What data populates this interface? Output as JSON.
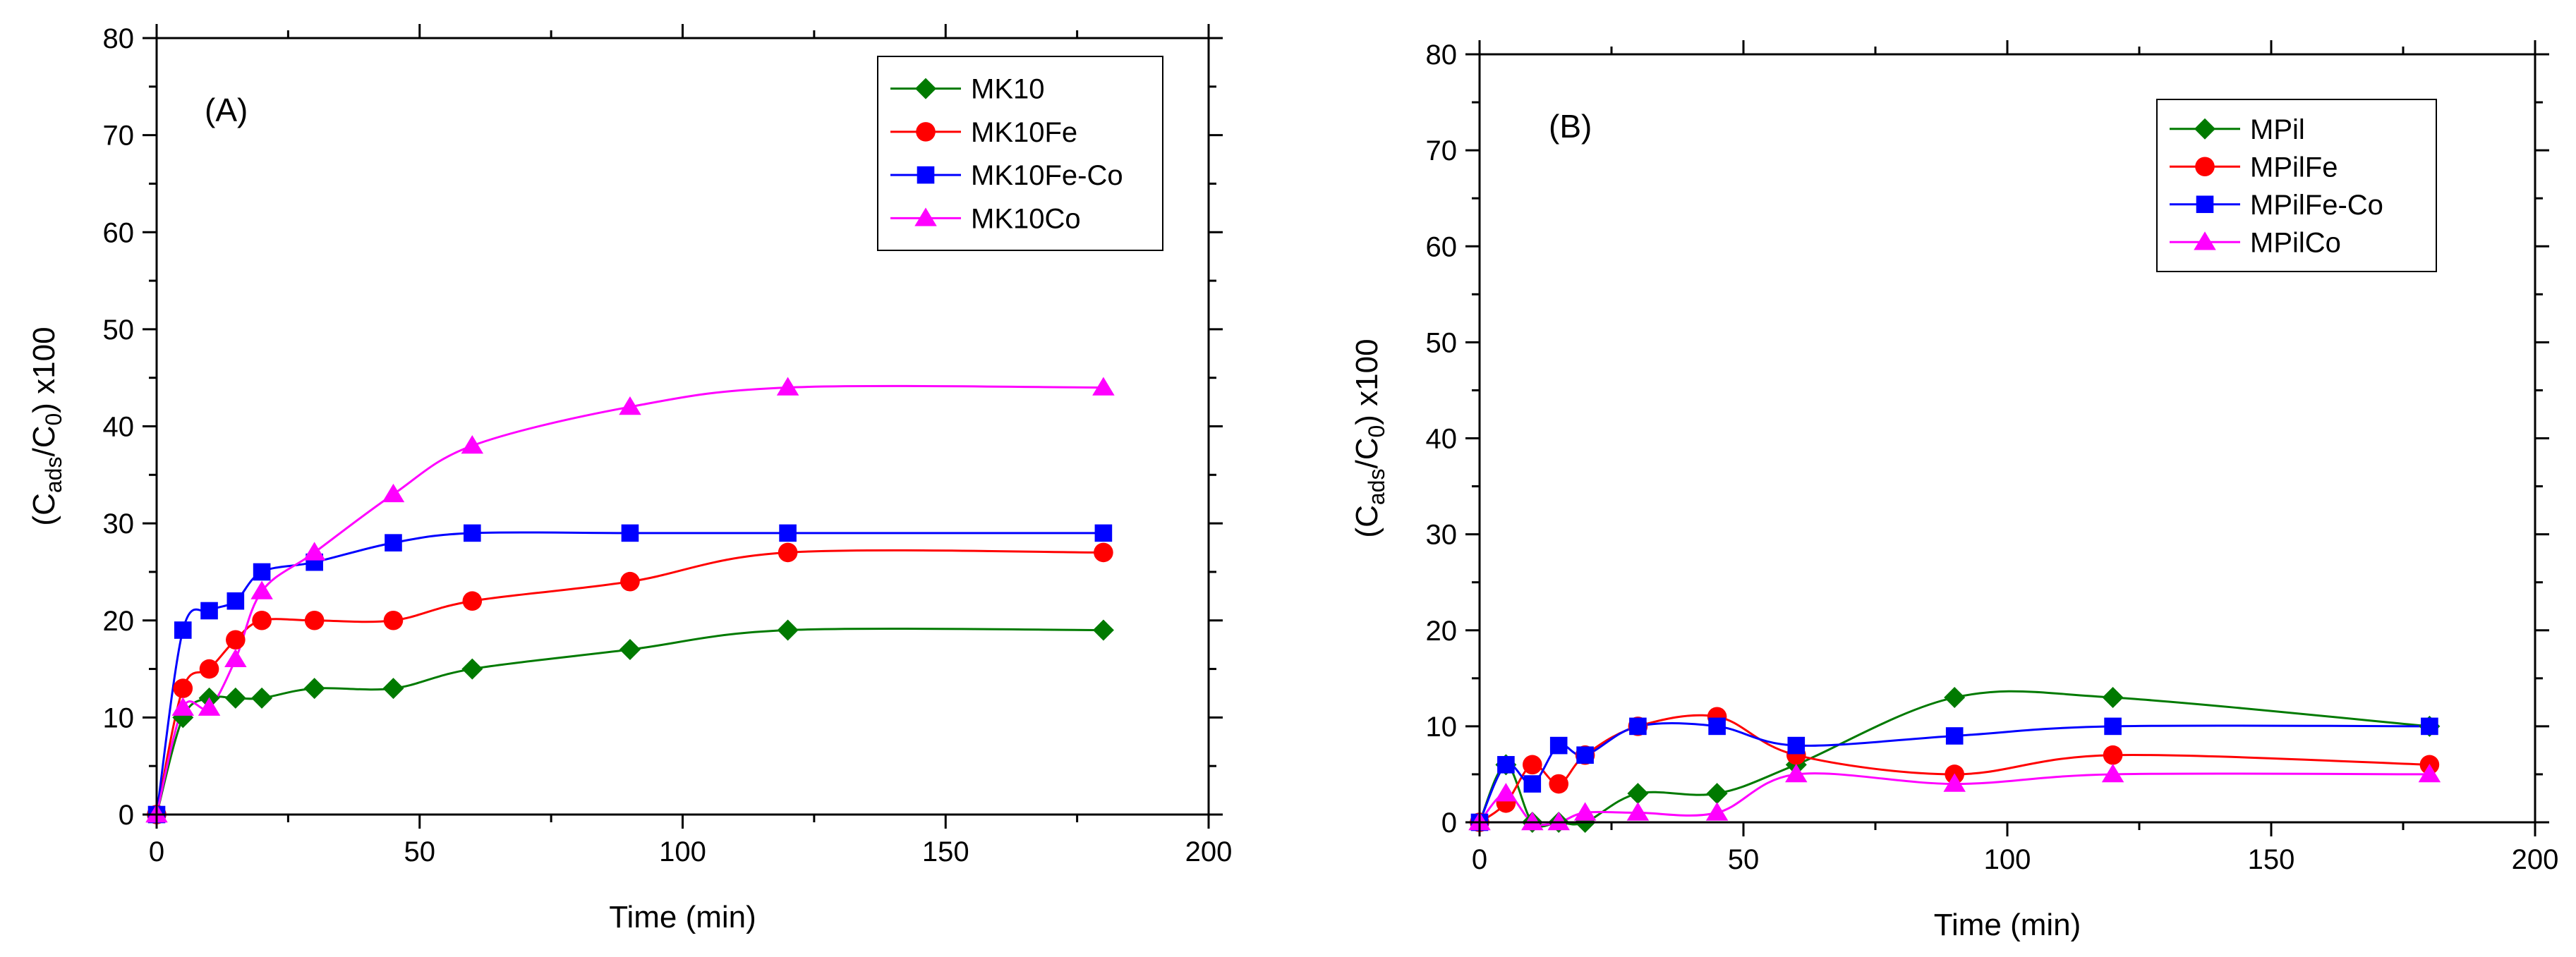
{
  "chart_data": [
    {
      "type": "line",
      "panel_label": "(A)",
      "xlabel": "Time (min)",
      "ylabel": {
        "prefix": "(C",
        "sub1": "ads",
        "mid": "/C",
        "sub2": "0",
        "suffix": ") x100"
      },
      "xlim": [
        0,
        200
      ],
      "ylim": [
        0,
        80
      ],
      "xticks": [
        0,
        50,
        100,
        150,
        200
      ],
      "yticks": [
        0,
        10,
        20,
        30,
        40,
        50,
        60,
        70,
        80
      ],
      "grid": false,
      "legend_position": "top-right",
      "series": [
        {
          "name": "MK10",
          "color": "#007a00",
          "marker": "diamond",
          "x": [
            0,
            5,
            10,
            15,
            20,
            30,
            45,
            60,
            90,
            120,
            180
          ],
          "y": [
            0,
            10,
            12,
            12,
            12,
            13,
            13,
            15,
            17,
            19,
            19
          ]
        },
        {
          "name": "MK10Fe",
          "color": "#ff0000",
          "marker": "circle",
          "x": [
            0,
            5,
            10,
            15,
            20,
            30,
            45,
            60,
            90,
            120,
            180
          ],
          "y": [
            0,
            13,
            15,
            18,
            20,
            20,
            20,
            22,
            24,
            27,
            27
          ]
        },
        {
          "name": "MK10Fe-Co",
          "color": "#0000ff",
          "marker": "square",
          "x": [
            0,
            5,
            10,
            15,
            20,
            30,
            45,
            60,
            90,
            120,
            180
          ],
          "y": [
            0,
            19,
            21,
            22,
            25,
            26,
            28,
            29,
            29,
            29,
            29
          ]
        },
        {
          "name": "MK10Co",
          "color": "#ff00ff",
          "marker": "triangle",
          "x": [
            0,
            5,
            10,
            15,
            20,
            30,
            45,
            60,
            90,
            120,
            180
          ],
          "y": [
            0,
            11,
            11,
            16,
            23,
            27,
            33,
            38,
            42,
            44,
            44
          ]
        }
      ]
    },
    {
      "type": "line",
      "panel_label": "(B)",
      "xlabel": "Time (min)",
      "ylabel": {
        "prefix": "(C",
        "sub1": "ads",
        "mid": "/C",
        "sub2": "0",
        "suffix": ") x100"
      },
      "xlim": [
        0,
        200
      ],
      "ylim": [
        0,
        80
      ],
      "xticks": [
        0,
        50,
        100,
        150,
        200
      ],
      "yticks": [
        0,
        10,
        20,
        30,
        40,
        50,
        60,
        70,
        80
      ],
      "grid": false,
      "legend_position": "top-right",
      "series": [
        {
          "name": "MPil",
          "color": "#007a00",
          "marker": "diamond",
          "x": [
            0,
            5,
            10,
            15,
            20,
            30,
            45,
            60,
            90,
            120,
            180
          ],
          "y": [
            0,
            6,
            0,
            0,
            0,
            3,
            3,
            6,
            13,
            13,
            10
          ]
        },
        {
          "name": "MPilFe",
          "color": "#ff0000",
          "marker": "circle",
          "x": [
            0,
            5,
            10,
            15,
            20,
            30,
            45,
            60,
            90,
            120,
            180
          ],
          "y": [
            0,
            2,
            6,
            4,
            7,
            10,
            11,
            7,
            5,
            7,
            6
          ]
        },
        {
          "name": "MPilFe-Co",
          "color": "#0000ff",
          "marker": "square",
          "x": [
            0,
            5,
            10,
            15,
            20,
            30,
            45,
            60,
            90,
            120,
            180
          ],
          "y": [
            0,
            6,
            4,
            8,
            7,
            10,
            10,
            8,
            9,
            10,
            10
          ]
        },
        {
          "name": "MPilCo",
          "color": "#ff00ff",
          "marker": "triangle",
          "x": [
            0,
            5,
            10,
            15,
            20,
            30,
            45,
            60,
            90,
            120,
            180
          ],
          "y": [
            0,
            3,
            0,
            0,
            1,
            1,
            1,
            5,
            4,
            5,
            5
          ]
        }
      ]
    }
  ]
}
